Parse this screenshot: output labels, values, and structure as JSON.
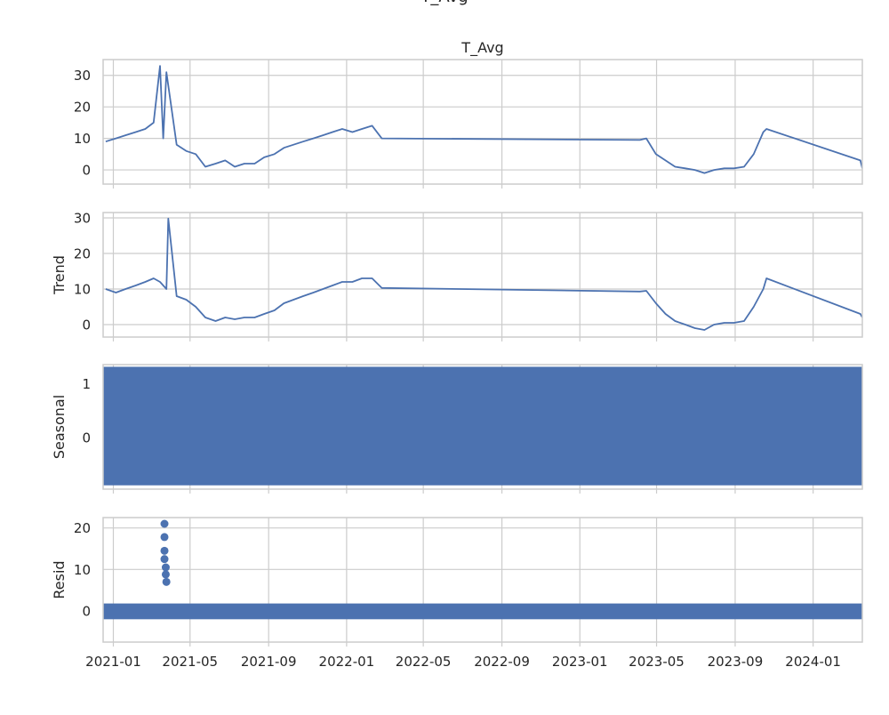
{
  "chart_data": {
    "type": "line",
    "suptitle": "T_Avg",
    "x_tick_labels": [
      "2021-01",
      "2021-05",
      "2021-09",
      "2022-01",
      "2022-05",
      "2022-09",
      "2023-01",
      "2023-05",
      "2023-09",
      "2024-01"
    ],
    "line_color": "#4c72b0",
    "grid": true,
    "panels": [
      {
        "name": "observed",
        "title": "T_Avg",
        "ylabel": "",
        "yticks": [
          0,
          10,
          20,
          30
        ],
        "ylim": [
          -4.5,
          35
        ],
        "style": "line",
        "x": [
          "2020-12-20",
          "2021-01-05",
          "2021-01-20",
          "2021-02-05",
          "2021-02-20",
          "2021-03-05",
          "2021-03-15",
          "2021-03-20",
          "2021-03-25",
          "2021-04-10",
          "2021-04-25",
          "2021-05-10",
          "2021-05-25",
          "2021-06-10",
          "2021-06-25",
          "2021-07-10",
          "2021-07-25",
          "2021-08-10",
          "2021-08-25",
          "2021-09-10",
          "2021-09-25",
          "2021-10-10",
          "2021-10-25",
          "2021-11-10",
          "2021-11-25",
          "2021-12-10",
          "2021-12-25",
          "2022-01-10",
          "2022-01-25",
          "2022-02-10",
          "2022-02-25",
          "2023-04-05",
          "2023-04-15",
          "2023-04-30",
          "2023-05-15",
          "2023-05-30",
          "2023-06-15",
          "2023-06-30",
          "2023-07-15",
          "2023-07-30",
          "2023-08-15",
          "2023-08-30",
          "2023-09-15",
          "2023-09-30",
          "2023-10-15",
          "2023-10-20",
          "2024-03-15",
          "2024-03-18"
        ],
        "y": [
          9,
          10,
          11,
          12,
          13,
          15,
          33,
          10,
          31,
          8,
          6,
          5,
          1,
          2,
          3,
          1,
          2,
          2,
          4,
          5,
          7,
          8,
          9,
          10,
          11,
          12,
          13,
          12,
          13,
          14,
          10,
          9.5,
          10,
          5,
          3,
          1,
          0.5,
          0,
          -1,
          0,
          0.5,
          0.5,
          1,
          5,
          12,
          13,
          3,
          0.5
        ]
      },
      {
        "name": "trend",
        "title": "",
        "ylabel": "Trend",
        "yticks": [
          0,
          10,
          20,
          30
        ],
        "ylim": [
          -3.5,
          31.5
        ],
        "style": "line",
        "x": [
          "2020-12-20",
          "2021-01-05",
          "2021-01-20",
          "2021-02-05",
          "2021-02-20",
          "2021-03-05",
          "2021-03-15",
          "2021-03-25",
          "2021-03-28",
          "2021-04-10",
          "2021-04-25",
          "2021-05-10",
          "2021-05-25",
          "2021-06-10",
          "2021-06-25",
          "2021-07-10",
          "2021-07-25",
          "2021-08-10",
          "2021-08-25",
          "2021-09-10",
          "2021-09-25",
          "2021-10-10",
          "2021-10-25",
          "2021-11-10",
          "2021-11-25",
          "2021-12-10",
          "2021-12-25",
          "2022-01-10",
          "2022-01-25",
          "2022-02-10",
          "2022-02-25",
          "2023-04-05",
          "2023-04-15",
          "2023-04-30",
          "2023-05-15",
          "2023-05-30",
          "2023-06-15",
          "2023-06-30",
          "2023-07-15",
          "2023-07-30",
          "2023-08-15",
          "2023-08-30",
          "2023-09-15",
          "2023-09-30",
          "2023-10-15",
          "2023-10-20",
          "2024-03-15",
          "2024-03-18"
        ],
        "y": [
          10,
          9,
          10,
          11,
          12,
          13,
          12,
          10,
          29.8,
          8,
          7,
          5,
          2,
          1,
          2,
          1.5,
          2,
          2,
          3,
          4,
          6,
          7,
          8,
          9,
          10,
          11,
          12,
          12,
          13,
          13,
          10.3,
          9.3,
          9.5,
          6,
          3,
          1,
          0,
          -1,
          -1.5,
          0,
          0.5,
          0.5,
          1,
          5,
          10,
          13,
          3,
          2
        ]
      },
      {
        "name": "seasonal",
        "title": "",
        "ylabel": "Seasonal",
        "yticks": [
          0,
          1
        ],
        "ylim": [
          -0.95,
          1.35
        ],
        "style": "band",
        "band": [
          -0.88,
          1.31
        ]
      },
      {
        "name": "resid",
        "title": "",
        "ylabel": "Resid",
        "yticks": [
          0,
          10,
          20
        ],
        "ylim": [
          -7.5,
          22.5
        ],
        "style": "points",
        "band": [
          -2,
          1.8
        ],
        "outliers": [
          {
            "x": "2021-03-22",
            "y": 21
          },
          {
            "x": "2021-03-22",
            "y": 17.8
          },
          {
            "x": "2021-03-22",
            "y": 14.5
          },
          {
            "x": "2021-03-22",
            "y": 12.5
          },
          {
            "x": "2021-03-24",
            "y": 10.5
          },
          {
            "x": "2021-03-24",
            "y": 8.8
          },
          {
            "x": "2021-03-25",
            "y": 7
          }
        ]
      }
    ]
  }
}
